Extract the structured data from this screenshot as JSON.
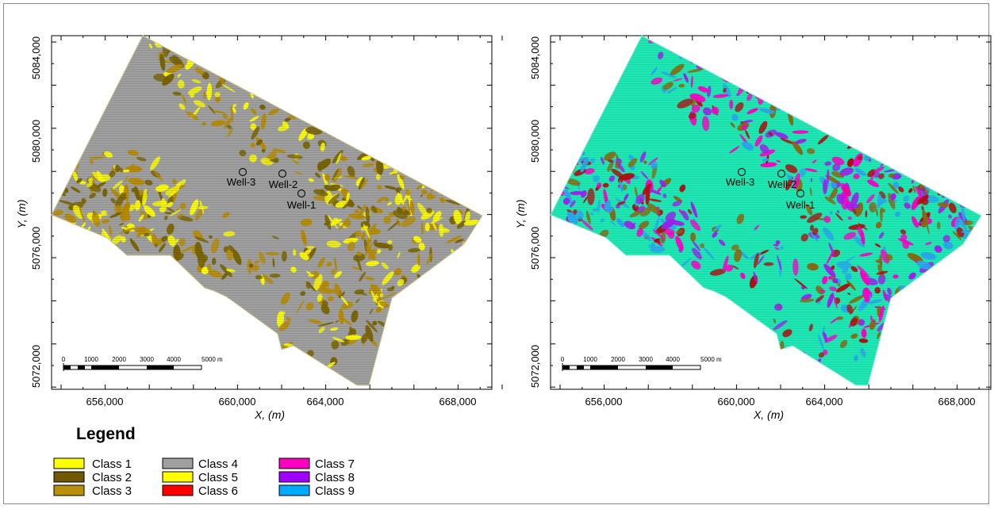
{
  "maps": [
    {
      "x_ticks": [
        "656,000",
        "660,000",
        "664,000",
        "668,000"
      ],
      "y_ticks": [
        "5072,000",
        "5076,000",
        "5080,000",
        "5084,000"
      ],
      "x_label": "X, (m)",
      "y_label": "Y, (m)",
      "base_color": "#a0a0a0",
      "patch_colors": [
        "#7a6400",
        "#ffff00",
        "#b88c00"
      ],
      "outline_color": "#cfc48a",
      "wells": [
        "Well-1",
        "Well-2",
        "Well-3"
      ],
      "scalebar_labels": [
        "0",
        "1000",
        "2000",
        "3000",
        "4000",
        "5000 m"
      ]
    },
    {
      "x_ticks": [
        "656,000",
        "660,000",
        "664,000",
        "668,000"
      ],
      "y_ticks": [
        "5072,000",
        "5076,000",
        "5080,000",
        "5084,000"
      ],
      "x_label": "X, (m)",
      "y_label": "Y, (m)",
      "base_color": "#1ee8b4",
      "patch_colors": [
        "#8a6a10",
        "#a020f0",
        "#2aa8f0",
        "#ff00c8",
        "#b01010"
      ],
      "outline_color": "#9be9dc",
      "wells": [
        "Well-1",
        "Well-2",
        "Well-3"
      ],
      "scalebar_labels": [
        "0",
        "1000",
        "2000",
        "3000",
        "4000",
        "5000 m"
      ]
    }
  ],
  "legend": {
    "title": "Legend",
    "items": [
      {
        "label": "Class 1",
        "color": "#ffff00"
      },
      {
        "label": "Class 2",
        "color": "#6f5800"
      },
      {
        "label": "Class 3",
        "color": "#b8900a"
      },
      {
        "label": "Class 4",
        "color": "#a0a0a0"
      },
      {
        "label": "Class 5",
        "color": "#ffff00"
      },
      {
        "label": "Class 6",
        "color": "#ff0000"
      },
      {
        "label": "Class 7",
        "color": "#ff00c0"
      },
      {
        "label": "Class 8",
        "color": "#a000ff"
      },
      {
        "label": "Class 9",
        "color": "#00aaff"
      }
    ]
  }
}
